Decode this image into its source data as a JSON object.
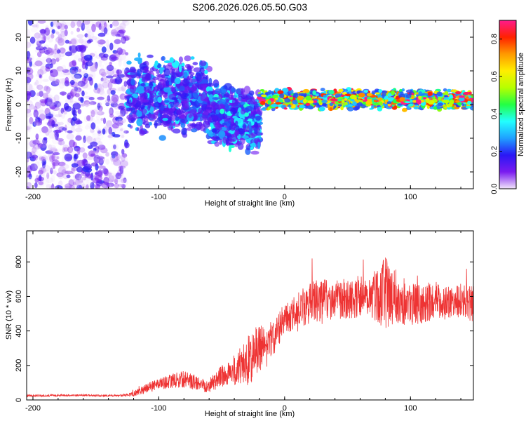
{
  "title": "S206.2026.026.05.50.G03",
  "chart_data": [
    {
      "type": "heatmap",
      "xlabel": "Height of straight line (km)",
      "ylabel": "Frequency (Hz)",
      "xlim": [
        -205,
        150
      ],
      "ylim": [
        -25,
        25
      ],
      "xticks": [
        -200,
        -100,
        0,
        100
      ],
      "yticks": [
        -20,
        -10,
        0,
        10,
        20
      ],
      "colorbar": {
        "label": "Normalized spectral amplitude",
        "range": [
          0,
          0.9
        ],
        "ticks": [
          "0.0",
          "0.2",
          "0.4",
          "0.6",
          "0.8"
        ],
        "colormap": [
          "#f2e6fb",
          "#7a1bf0",
          "#2a17f5",
          "#1fa0ff",
          "#22ffff",
          "#22ff44",
          "#b6ff00",
          "#ffee00",
          "#ff9900",
          "#ff2200",
          "#ff1a8c"
        ]
      },
      "regions": [
        {
          "x": [
            -205,
            -125
          ],
          "y": [
            -25,
            25
          ],
          "density": "diffuse",
          "amplitude": [
            0.0,
            0.2
          ]
        },
        {
          "x": [
            -125,
            -60
          ],
          "y": [
            -8,
            13
          ],
          "density": "moderate",
          "amplitude": [
            0.1,
            0.35
          ]
        },
        {
          "x": [
            -60,
            -20
          ],
          "y": [
            -10,
            6
          ],
          "density": "moderate",
          "amplitude": [
            0.1,
            0.4
          ]
        },
        {
          "x": [
            -20,
            150
          ],
          "y": [
            -2,
            5
          ],
          "density": "band",
          "amplitude": [
            0.2,
            0.9
          ],
          "center_frequency": 1.5
        }
      ]
    },
    {
      "type": "line",
      "xlabel": "Height of straight line (km)",
      "ylabel": "SNR (10 * v/v)",
      "xlim": [
        -205,
        150
      ],
      "ylim": [
        0,
        980
      ],
      "xticks": [
        -200,
        -100,
        0,
        100
      ],
      "yticks": [
        0,
        200,
        400,
        600,
        800
      ],
      "series": [
        {
          "color": "#ee3333",
          "x": [
            -205,
            -190,
            -175,
            -160,
            -145,
            -130,
            -120,
            -110,
            -100,
            -90,
            -80,
            -70,
            -60,
            -50,
            -40,
            -30,
            -25,
            -20,
            -15,
            -10,
            -5,
            0,
            10,
            20,
            30,
            40,
            50,
            60,
            70,
            80,
            90,
            100,
            110,
            120,
            130,
            140,
            150
          ],
          "values": [
            25,
            25,
            27,
            27,
            24,
            25,
            35,
            70,
            90,
            110,
            120,
            100,
            80,
            140,
            170,
            220,
            260,
            300,
            320,
            340,
            420,
            460,
            520,
            560,
            580,
            580,
            590,
            600,
            610,
            620,
            590,
            560,
            550,
            580,
            560,
            580,
            560
          ],
          "spike_amplitude": [
            8,
            8,
            8,
            8,
            8,
            8,
            20,
            40,
            45,
            60,
            70,
            60,
            60,
            90,
            130,
            200,
            220,
            200,
            150,
            140,
            150,
            130,
            140,
            180,
            180,
            160,
            170,
            180,
            200,
            300,
            220,
            180,
            160,
            150,
            140,
            140,
            160
          ]
        }
      ]
    }
  ]
}
